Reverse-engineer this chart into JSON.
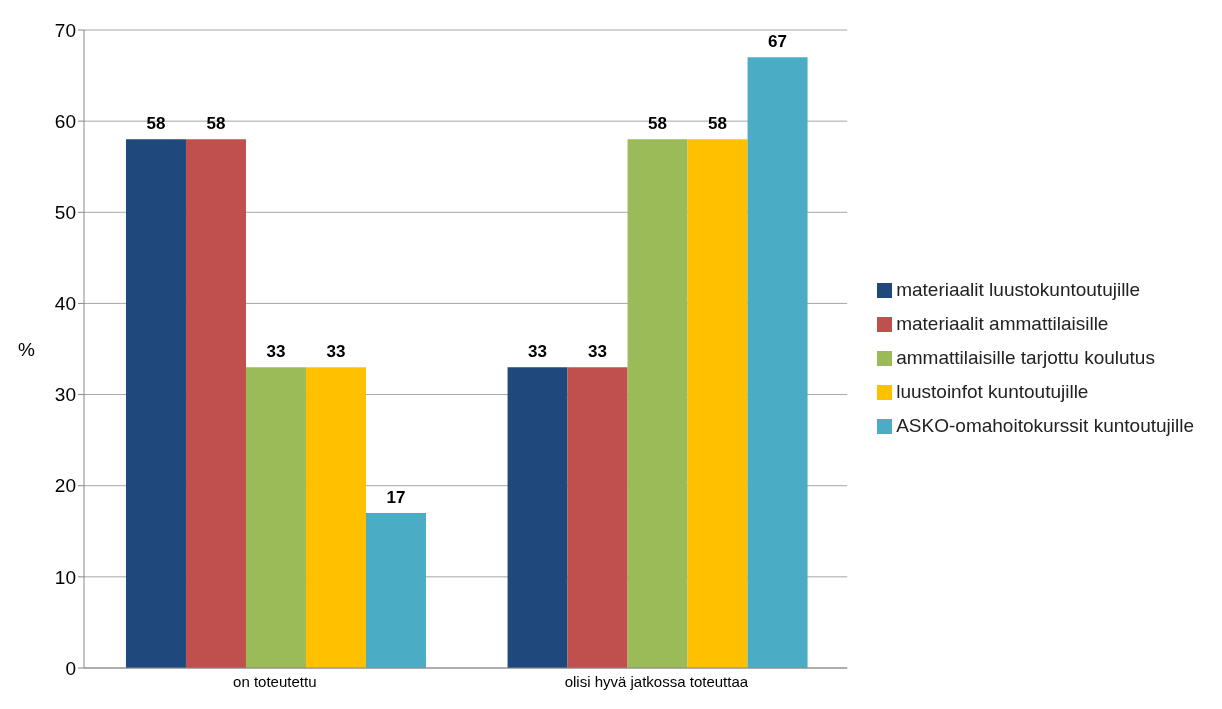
{
  "chart_data": {
    "type": "bar",
    "ylabel": "%",
    "categories": [
      "on toteutettu",
      "olisi hyvä jatkossa toteuttaa"
    ],
    "series": [
      {
        "name": "materiaalit luustokuntoutujille",
        "color": "#1f497d",
        "values": [
          58,
          33
        ]
      },
      {
        "name": "materiaalit ammattilaisille",
        "color": "#c0504d",
        "values": [
          58,
          33
        ]
      },
      {
        "name": "ammattilaisille tarjottu koulutus",
        "color": "#9bbb59",
        "values": [
          33,
          58
        ]
      },
      {
        "name": "luustoinfot kuntoutujille",
        "color": "#ffc000",
        "values": [
          33,
          58
        ]
      },
      {
        "name": "ASKO-omahoitokurssit kuntoutujille",
        "color": "#4bacc6",
        "values": [
          17,
          67
        ]
      }
    ],
    "ylim": [
      0,
      70
    ],
    "yticks": [
      0,
      10,
      20,
      30,
      40,
      50,
      60,
      70
    ],
    "grid": "y",
    "legend": "right",
    "data_labels": true
  }
}
